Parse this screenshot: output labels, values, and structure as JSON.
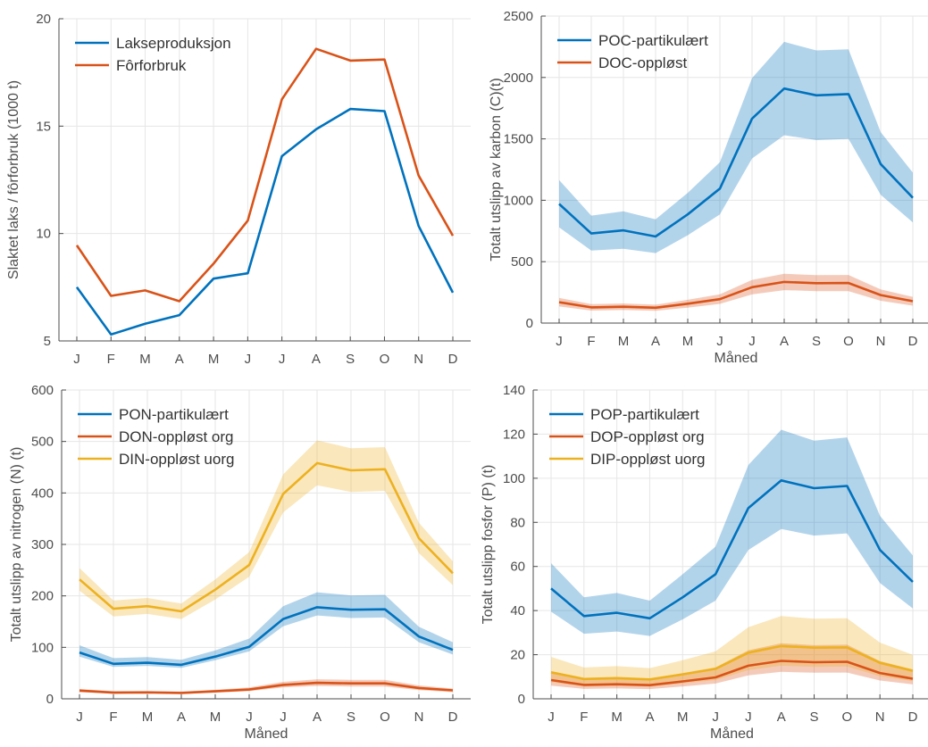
{
  "figure": {
    "background": "#ffffff"
  },
  "chart_data": [
    {
      "type": "line",
      "panel": "top-left",
      "categories": [
        "J",
        "F",
        "M",
        "A",
        "M",
        "J",
        "J",
        "A",
        "S",
        "O",
        "N",
        "D"
      ],
      "ylabel": "Slaktet laks / fôrforbruk (1000 t)",
      "xlabel": "",
      "ylim": [
        5,
        20
      ],
      "yticks": [
        5,
        10,
        15,
        20
      ],
      "grid": true,
      "legend": "top-left",
      "series": [
        {
          "name": "Lakseproduksjon",
          "color": "#0072BD",
          "values": [
            7.5,
            5.3,
            5.8,
            6.2,
            7.9,
            8.15,
            13.6,
            14.85,
            15.8,
            15.7,
            10.35,
            7.25
          ]
        },
        {
          "name": "Fôrforbruk",
          "color": "#D95319",
          "values": [
            9.45,
            7.1,
            7.35,
            6.85,
            8.6,
            10.6,
            16.25,
            18.6,
            18.05,
            18.1,
            12.7,
            9.9
          ]
        }
      ]
    },
    {
      "type": "line",
      "panel": "top-right",
      "categories": [
        "J",
        "F",
        "M",
        "A",
        "M",
        "J",
        "J",
        "A",
        "S",
        "O",
        "N",
        "D"
      ],
      "ylabel": "Totalt utslipp av karbon (C)(t)",
      "xlabel": "Måned",
      "ylim": [
        0,
        2500
      ],
      "yticks": [
        0,
        500,
        1000,
        1500,
        2000,
        2500
      ],
      "grid": true,
      "legend": "top-left",
      "series": [
        {
          "name": "POC-partikulært",
          "color": "#0072BD",
          "values": [
            970,
            730,
            755,
            705,
            885,
            1095,
            1665,
            1910,
            1855,
            1865,
            1295,
            1020
          ],
          "lower": [
            780,
            590,
            605,
            570,
            715,
            885,
            1340,
            1530,
            1490,
            1500,
            1045,
            820
          ],
          "upper": [
            1165,
            875,
            910,
            845,
            1060,
            1310,
            1995,
            2290,
            2220,
            2230,
            1555,
            1225
          ]
        },
        {
          "name": "DOC-oppløst",
          "color": "#D95319",
          "values": [
            170,
            128,
            133,
            125,
            158,
            195,
            292,
            335,
            325,
            326,
            228,
            178
          ],
          "lower": [
            135,
            102,
            106,
            100,
            126,
            156,
            233,
            268,
            260,
            260,
            182,
            142
          ],
          "upper": [
            205,
            154,
            160,
            150,
            190,
            235,
            352,
            402,
            390,
            392,
            274,
            214
          ]
        }
      ]
    },
    {
      "type": "line",
      "panel": "bottom-left",
      "categories": [
        "J",
        "F",
        "M",
        "A",
        "M",
        "J",
        "J",
        "A",
        "S",
        "O",
        "N",
        "D"
      ],
      "ylabel": "Totalt utslipp av nitrogen (N) (t)",
      "xlabel": "Måned",
      "ylim": [
        0,
        600
      ],
      "yticks": [
        0,
        100,
        200,
        300,
        400,
        500,
        600
      ],
      "grid": true,
      "legend": "top-left",
      "series": [
        {
          "name": "PON-partikulært",
          "color": "#0072BD",
          "values": [
            90,
            68,
            70,
            66,
            82,
            101,
            155,
            178,
            173,
            174,
            121,
            95
          ],
          "lower": [
            82,
            62,
            64,
            60,
            75,
            92,
            141,
            162,
            157,
            158,
            110,
            86
          ],
          "upper": [
            104,
            79,
            81,
            76,
            94,
            117,
            180,
            207,
            201,
            202,
            140,
            110
          ]
        },
        {
          "name": "DON-oppløst org",
          "color": "#D95319",
          "values": [
            16,
            12,
            12.5,
            11.5,
            14.5,
            18,
            27,
            31,
            30,
            30,
            21,
            16.5
          ],
          "lower": [
            13,
            10,
            10.5,
            9.5,
            12,
            15,
            22,
            25,
            24,
            24,
            17,
            13
          ],
          "upper": [
            19,
            15,
            15,
            14,
            17.5,
            22,
            33,
            38,
            37,
            37,
            26,
            20
          ]
        },
        {
          "name": "DIN-oppløst uorg",
          "color": "#EDB120",
          "values": [
            232,
            175,
            180,
            170,
            212,
            260,
            398,
            458,
            444,
            446,
            312,
            244
          ],
          "lower": [
            210,
            160,
            165,
            155,
            193,
            237,
            362,
            415,
            402,
            404,
            283,
            221
          ],
          "upper": [
            254,
            191,
            196,
            185,
            232,
            285,
            436,
            502,
            487,
            489,
            342,
            267
          ]
        }
      ]
    },
    {
      "type": "line",
      "panel": "bottom-right",
      "categories": [
        "J",
        "F",
        "M",
        "A",
        "M",
        "J",
        "J",
        "A",
        "S",
        "O",
        "N",
        "D"
      ],
      "ylabel": "Totalt utslipp fosfor (P) (t)",
      "xlabel": "Måned",
      "ylim": [
        0,
        140
      ],
      "yticks": [
        0,
        20,
        40,
        60,
        80,
        100,
        120,
        140
      ],
      "grid": true,
      "legend": "top-left",
      "series": [
        {
          "name": "POP-partikulært",
          "color": "#0072BD",
          "values": [
            50,
            37.5,
            39,
            36.5,
            46,
            56.5,
            86.5,
            99,
            95.5,
            96.5,
            67.5,
            53
          ],
          "lower": [
            39.5,
            29.5,
            30.5,
            28.5,
            36,
            44.5,
            67.5,
            77,
            74,
            75,
            52.5,
            41
          ],
          "upper": [
            61.5,
            46,
            48,
            44.5,
            56.5,
            69,
            106,
            122,
            117,
            118.5,
            83,
            65
          ]
        },
        {
          "name": "DOP-oppløst org",
          "color": "#D95319",
          "values": [
            8.5,
            6.3,
            6.6,
            6.2,
            7.9,
            9.7,
            15,
            17.2,
            16.6,
            16.8,
            11.7,
            9.1
          ],
          "lower": [
            6,
            4.5,
            4.7,
            4.4,
            5.6,
            6.9,
            10.6,
            12.2,
            11.8,
            11.9,
            8.3,
            6.5
          ],
          "upper": [
            12.5,
            9.3,
            9.7,
            9.1,
            11.6,
            14.2,
            22,
            25.2,
            24.3,
            24.6,
            17.1,
            13.3
          ]
        },
        {
          "name": "DIP-oppløst uorg",
          "color": "#EDB120",
          "values": [
            12,
            9,
            9.4,
            8.8,
            11.1,
            13.6,
            20.9,
            23.9,
            23.2,
            23.3,
            16.3,
            12.7
          ],
          "lower": [
            7.5,
            5.6,
            5.9,
            5.5,
            7,
            8.5,
            13,
            15,
            14.5,
            14.6,
            10.2,
            8
          ],
          "upper": [
            19,
            14.2,
            14.8,
            13.9,
            17.5,
            21.5,
            32.5,
            37.5,
            36.3,
            36.5,
            25.5,
            19.9
          ]
        }
      ]
    }
  ]
}
